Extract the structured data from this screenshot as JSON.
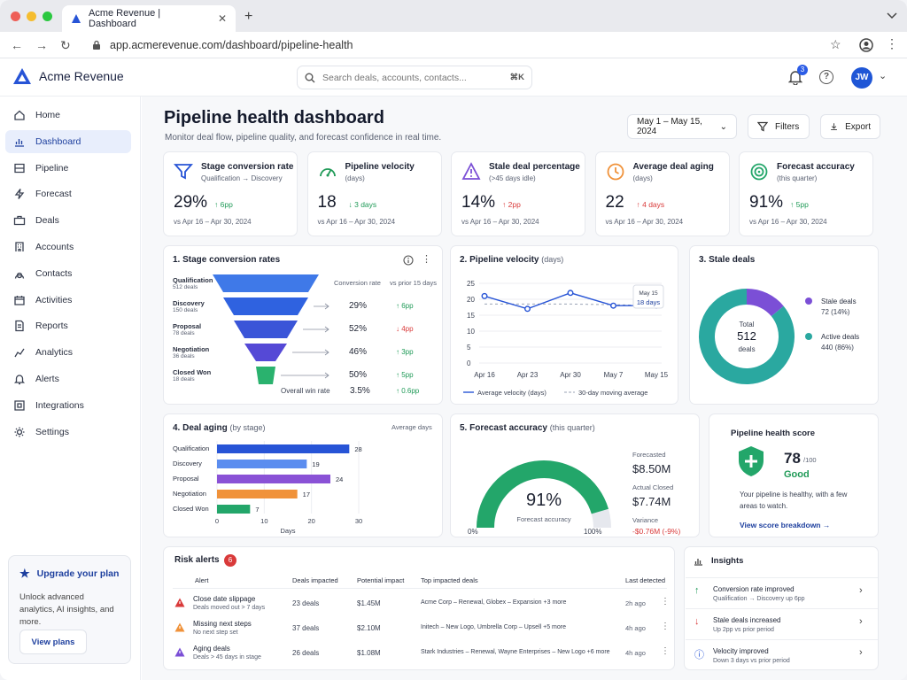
{
  "browser": {
    "tab_title": "Acme Revenue | Dashboard",
    "url": "app.acmerevenue.com/dashboard/pipeline-health"
  },
  "app": {
    "name": "Acme Revenue",
    "search_placeholder": "Search deals, accounts, contacts...",
    "search_shortcut": "⌘K",
    "notif_count": "3",
    "avatar_initials": "JW"
  },
  "sidebar": {
    "items": [
      {
        "label": "Home",
        "icon": "home-icon"
      },
      {
        "label": "Dashboard",
        "icon": "chart-icon",
        "active": true
      },
      {
        "label": "Pipeline",
        "icon": "pipeline-icon"
      },
      {
        "label": "Forecast",
        "icon": "bolt-icon"
      },
      {
        "label": "Deals",
        "icon": "briefcase-icon"
      },
      {
        "label": "Accounts",
        "icon": "building-icon"
      },
      {
        "label": "Contacts",
        "icon": "user-icon"
      },
      {
        "label": "Activities",
        "icon": "calendar-icon"
      },
      {
        "label": "Reports",
        "icon": "reports-icon"
      },
      {
        "label": "Analytics",
        "icon": "analytics-icon"
      },
      {
        "label": "Alerts",
        "icon": "bell-icon"
      },
      {
        "label": "Integrations",
        "icon": "integrations-icon"
      },
      {
        "label": "Settings",
        "icon": "gear-icon"
      }
    ],
    "upgrade": {
      "title": "Upgrade your plan",
      "desc": "Unlock advanced analytics, AI insights, and more.",
      "button": "View plans"
    }
  },
  "page": {
    "title": "Pipeline health dashboard",
    "subtitle": "Monitor deal flow, pipeline quality, and forecast confidence in real time.",
    "date_range": "May 1 – May 15, 2024",
    "filters_label": "Filters",
    "export_label": "Export"
  },
  "kpis": [
    {
      "title": "Stage conversion rate",
      "sub": "Qualification → Discovery",
      "value": "29%",
      "delta": "↑ 6pp",
      "dir": "up",
      "compare": "vs Apr 16 – Apr 30, 2024"
    },
    {
      "title": "Pipeline velocity",
      "sub": "(days)",
      "value": "18",
      "delta": "↓ 3 days",
      "dir": "up",
      "compare": "vs Apr 16 – Apr 30, 2024"
    },
    {
      "title": "Stale deal percentage",
      "sub": "(>45 days idle)",
      "value": "14%",
      "delta": "↑ 2pp",
      "dir": "down",
      "compare": "vs Apr 16 – Apr 30, 2024"
    },
    {
      "title": "Average deal aging",
      "sub": "(days)",
      "value": "22",
      "delta": "↑ 4 days",
      "dir": "down",
      "compare": "vs Apr 16 – Apr 30, 2024"
    },
    {
      "title": "Forecast accuracy",
      "sub": "(this quarter)",
      "value": "91%",
      "delta": "↑ 5pp",
      "dir": "up",
      "compare": "vs Apr 16 – Apr 30, 2024"
    }
  ],
  "funnel": {
    "title": "1. Stage conversion rates",
    "col_rate": "Conversion rate",
    "col_prior": "vs prior 15 days",
    "stages": [
      {
        "name": "Qualification",
        "deals": "512 deals",
        "rate": "",
        "prior": ""
      },
      {
        "name": "Discovery",
        "deals": "150 deals",
        "rate": "29%",
        "prior": "↑ 6pp",
        "dir": "up"
      },
      {
        "name": "Proposal",
        "deals": "78 deals",
        "rate": "52%",
        "prior": "↓ 4pp",
        "dir": "down"
      },
      {
        "name": "Negotiation",
        "deals": "36 deals",
        "rate": "46%",
        "prior": "↑ 3pp",
        "dir": "up"
      },
      {
        "name": "Closed Won",
        "deals": "18 deals",
        "rate": "50%",
        "prior": "↑ 5pp",
        "dir": "up"
      }
    ],
    "overall_label": "Overall win rate",
    "overall_rate": "3.5%",
    "overall_prior": "↑ 0.6pp"
  },
  "chart_data": [
    {
      "type": "line",
      "title": "2. Pipeline velocity",
      "subtitle": "(days)",
      "x": [
        "Apr 16",
        "Apr 23",
        "Apr 30",
        "May 7",
        "May 15"
      ],
      "series": [
        {
          "name": "Average velocity (days)",
          "values": [
            21,
            17,
            22,
            18,
            18
          ]
        },
        {
          "name": "30-day moving average",
          "values": [
            18.5,
            18.5,
            18.5,
            18.3,
            18
          ]
        }
      ],
      "ylim": [
        0,
        25
      ],
      "yticks": [
        0,
        5,
        10,
        15,
        20,
        25
      ],
      "tooltip": {
        "x": "May 15",
        "value": "18 days"
      }
    },
    {
      "type": "pie",
      "title": "3. Stale deals",
      "center_label": "Total",
      "center_value": "512",
      "center_unit": "deals",
      "slices": [
        {
          "name": "Stale deals",
          "value": 72,
          "pct": "72 (14%)",
          "color": "#7b4fd6"
        },
        {
          "name": "Active deals",
          "value": 440,
          "pct": "440 (86%)",
          "color": "#2aa8a0"
        }
      ]
    },
    {
      "type": "bar",
      "title": "4. Deal aging",
      "subtitle": "(by stage)",
      "value_label": "Average days",
      "xlabel": "Days",
      "categories": [
        "Qualification",
        "Discovery",
        "Proposal",
        "Negotiation",
        "Closed Won"
      ],
      "values": [
        28,
        19,
        24,
        17,
        7
      ],
      "colors": [
        "#2754d6",
        "#5b8def",
        "#8a52d6",
        "#f0923a",
        "#23a66a"
      ],
      "xlim": [
        0,
        30
      ],
      "xticks": [
        0,
        10,
        20,
        30
      ]
    }
  ],
  "forecast": {
    "title": "5. Forecast accuracy",
    "subtitle": "(this quarter)",
    "value": "91%",
    "value_label": "Forecast accuracy",
    "fraction": 0.91,
    "min": "0%",
    "max": "100%",
    "forecasted_label": "Forecasted",
    "forecasted": "$8.50M",
    "actual_label": "Actual Closed",
    "actual": "$7.74M",
    "variance_label": "Variance",
    "variance": "-$0.76M (-9%)"
  },
  "health": {
    "title": "Pipeline health score",
    "score": "78",
    "outof": "/100",
    "status": "Good",
    "desc": "Your pipeline is healthy, with a few areas to watch.",
    "link": "View score breakdown →"
  },
  "risk": {
    "title": "Risk alerts",
    "count": "6",
    "cols": [
      "Alert",
      "Deals impacted",
      "Potential impact",
      "Top impacted deals",
      "Last detected"
    ],
    "rows": [
      {
        "title": "Close date slippage",
        "sub": "Deals moved out > 7 days",
        "deals": "23 deals",
        "impact": "$1.45M",
        "top": "Acme Corp – Renewal, Globex – Expansion +3 more",
        "time": "2h ago",
        "color": "#d93a3a"
      },
      {
        "title": "Missing next steps",
        "sub": "No next step set",
        "deals": "37 deals",
        "impact": "$2.10M",
        "top": "Initech – New Logo, Umbrella Corp – Upsell +5 more",
        "time": "4h ago",
        "color": "#f0923a"
      },
      {
        "title": "Aging deals",
        "sub": "Deals > 45 days in stage",
        "deals": "26 deals",
        "impact": "$1.08M",
        "top": "Stark Industries – Renewal, Wayne Enterprises – New Logo +6 more",
        "time": "4h ago",
        "color": "#7b4fd6"
      }
    ]
  },
  "insights": {
    "title": "Insights",
    "items": [
      {
        "title": "Conversion rate improved",
        "sub": "Qualification → Discovery up 6pp",
        "icon": "arrow-up-icon",
        "color": "#1f9a57"
      },
      {
        "title": "Stale deals increased",
        "sub": "Up 2pp vs prior period",
        "icon": "arrow-down-icon",
        "color": "#d93a3a"
      },
      {
        "title": "Velocity improved",
        "sub": "Down 3 days vs prior period",
        "icon": "info-icon",
        "color": "#2754d6"
      }
    ]
  }
}
